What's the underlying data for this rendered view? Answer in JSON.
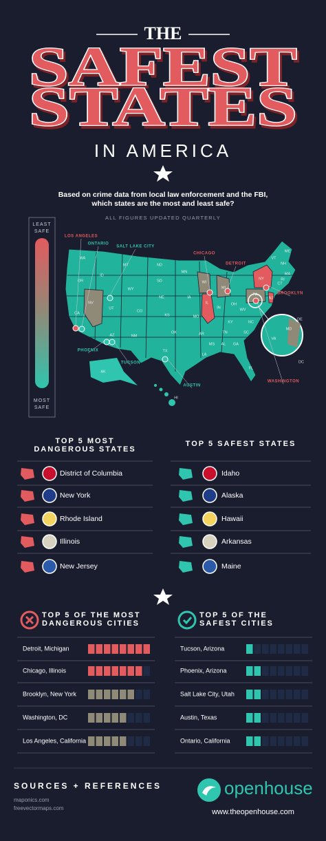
{
  "header": {
    "the": "THE",
    "title_1": "SAFEST",
    "title_2": "STATES",
    "subtitle": "IN AMERICA",
    "intro_lines": [
      "Based on crime data from local law enforcement and the FBI,",
      "which states are the most and least safe?"
    ],
    "updated": "ALL FIGURES UPDATED QUARTERLY"
  },
  "legend": {
    "top": [
      "LEAST",
      "SAFE"
    ],
    "bottom": [
      "MOST",
      "SAFE"
    ]
  },
  "map": {
    "cities": [
      {
        "name": "LOS ANGELES",
        "color": "#e25b5e"
      },
      {
        "name": "ONTARIO",
        "color": "#2fc5ae"
      },
      {
        "name": "SALT LAKE CITY",
        "color": "#2fc5ae"
      },
      {
        "name": "CHICAGO",
        "color": "#e25b5e"
      },
      {
        "name": "DETROIT",
        "color": "#e25b5e"
      },
      {
        "name": "BROOKLYN",
        "color": "#e25b5e"
      },
      {
        "name": "PHOENIX",
        "color": "#2fc5ae"
      },
      {
        "name": "TUCSON",
        "color": "#2fc5ae"
      },
      {
        "name": "AUSTIN",
        "color": "#2fc5ae"
      },
      {
        "name": "WASHINGTON",
        "color": "#e25b5e"
      }
    ],
    "states": [
      "WA",
      "OR",
      "CA",
      "NV",
      "ID",
      "MT",
      "WY",
      "UT",
      "AZ",
      "NM",
      "CO",
      "ND",
      "SD",
      "NE",
      "KS",
      "OK",
      "TX",
      "MN",
      "IA",
      "MO",
      "AR",
      "LA",
      "WI",
      "IL",
      "MI",
      "IN",
      "OH",
      "KY",
      "TN",
      "MS",
      "AL",
      "GA",
      "FL",
      "SC",
      "NC",
      "VA",
      "WV",
      "PA",
      "NY",
      "VT",
      "NH",
      "ME",
      "MA",
      "CT",
      "RI",
      "NJ",
      "DE",
      "MD",
      "DC",
      "AK",
      "HI"
    ]
  },
  "dangerous_states": {
    "title_lines": [
      "TOP 5 MOST",
      "DANGEROUS STATES"
    ],
    "color": "#e25b5e",
    "items": [
      "District of Columbia",
      "New York",
      "Rhode Island",
      "Illinois",
      "New Jersey"
    ]
  },
  "safest_states": {
    "title_lines": [
      "TOP 5 SAFEST STATES"
    ],
    "color": "#2fc5ae",
    "items": [
      "Idaho",
      "Alaska",
      "Hawaii",
      "Arkansas",
      "Maine"
    ]
  },
  "dangerous_cities": {
    "title_lines": [
      "TOP 5 OF THE MOST",
      "DANGEROUS CITIES"
    ],
    "scale": [
      0,
      8
    ],
    "items": [
      {
        "name": "Detroit, Michigan",
        "score": 8,
        "color": "#e25b5e"
      },
      {
        "name": "Chicago, Illinois",
        "score": 7,
        "color": "#e25b5e"
      },
      {
        "name": "Brooklyn, New York",
        "score": 6,
        "color": "#8f8a78"
      },
      {
        "name": "Washington, DC",
        "score": 5,
        "color": "#8f8a78"
      },
      {
        "name": "Los Angeles, California",
        "score": 5,
        "color": "#8f8a78"
      }
    ]
  },
  "safest_cities": {
    "title_lines": [
      "TOP 5 OF THE",
      "SAFEST CITIES"
    ],
    "scale": [
      0,
      8
    ],
    "items": [
      {
        "name": "Tucson, Arizona",
        "score": 1,
        "color": "#2fc5ae"
      },
      {
        "name": "Phoenix, Arizona",
        "score": 2,
        "color": "#2fc5ae"
      },
      {
        "name": "Salt Lake City, Utah",
        "score": 2,
        "color": "#2fc5ae"
      },
      {
        "name": "Austin, Texas",
        "score": 2,
        "color": "#2fc5ae"
      },
      {
        "name": "Ontario, California",
        "score": 2,
        "color": "#2fc5ae"
      }
    ]
  },
  "footer": {
    "sources_title": "SOURCES + REFERENCES",
    "sources": [
      "maponics.com",
      "freevectormaps.com"
    ],
    "brand": "openhouse",
    "url": "www.theopenhouse.com"
  }
}
